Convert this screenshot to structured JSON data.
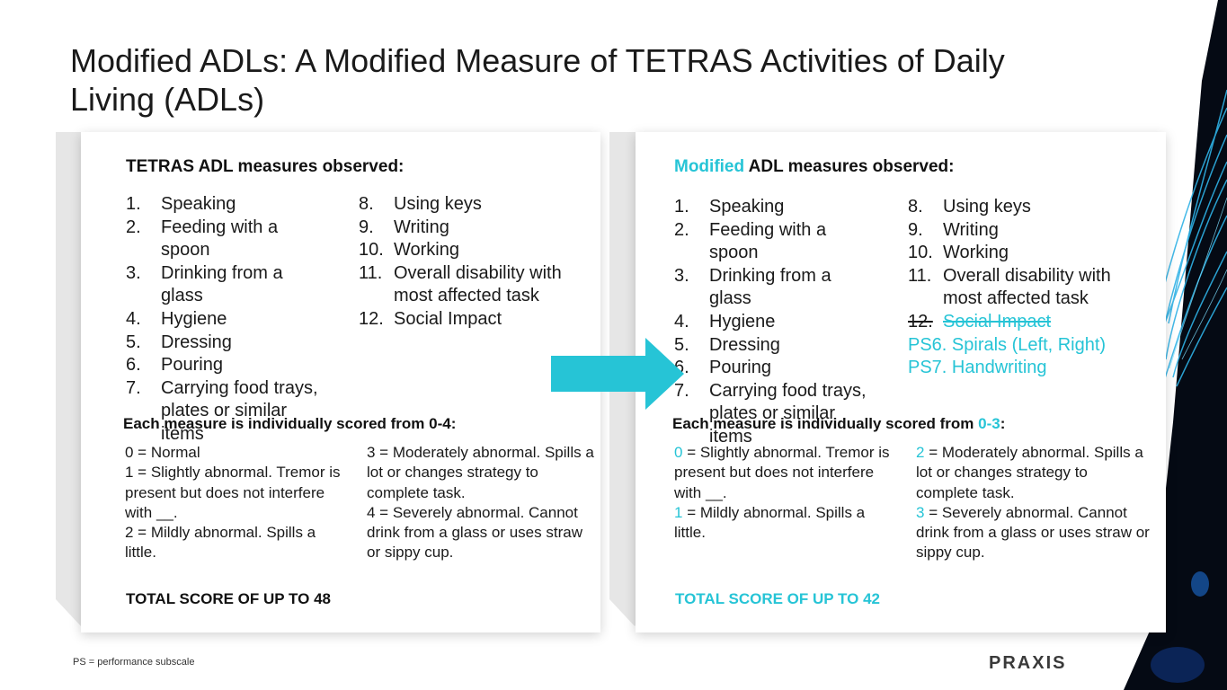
{
  "title": "Modified ADLs: A Modified Measure of TETRAS Activities of Daily Living (ADLs)",
  "left_card": {
    "heading": "TETRAS ADL measures observed:",
    "col1": [
      {
        "num": "1.",
        "text": "Speaking"
      },
      {
        "num": "2.",
        "text": "Feeding with a spoon"
      },
      {
        "num": "3.",
        "text": "Drinking from a glass"
      },
      {
        "num": "4.",
        "text": "Hygiene"
      },
      {
        "num": "5.",
        "text": "Dressing"
      },
      {
        "num": "6.",
        "text": "Pouring"
      },
      {
        "num": "7.",
        "text": "Carrying food trays, plates or similar items"
      }
    ],
    "col2": [
      {
        "num": "8.",
        "text": "Using keys"
      },
      {
        "num": "9.",
        "text": "Writing"
      },
      {
        "num": "10.",
        "text": "Working"
      },
      {
        "num": "11.",
        "text": "Overall disability with most affected task"
      },
      {
        "num": "12.",
        "text": "Social Impact"
      }
    ],
    "score_heading": "Each measure is individually scored from 0-4:",
    "score_col1": [
      "0 = Normal",
      "1 = Slightly abnormal. Tremor is present but does not interfere with __.",
      "2 = Mildly abnormal. Spills a little."
    ],
    "score_col2": [
      "3 = Moderately abnormal. Spills a lot or changes strategy to complete task.",
      "4 = Severely abnormal. Cannot drink from a glass or uses straw or sippy cup."
    ],
    "total": "TOTAL SCORE OF UP TO 48"
  },
  "right_card": {
    "heading_accent": "Modified",
    "heading_rest": " ADL measures observed:",
    "col1": [
      {
        "num": "1.",
        "text": "Speaking"
      },
      {
        "num": "2.",
        "text": "Feeding with a spoon"
      },
      {
        "num": "3.",
        "text": "Drinking from a glass"
      },
      {
        "num": "4.",
        "text": "Hygiene"
      },
      {
        "num": "5.",
        "text": "Dressing"
      },
      {
        "num": "6.",
        "text": "Pouring"
      },
      {
        "num": "7.",
        "text": "Carrying food trays, plates or similar items"
      }
    ],
    "col2": [
      {
        "num": "8.",
        "text": "Using keys"
      },
      {
        "num": "9.",
        "text": "Writing"
      },
      {
        "num": "10.",
        "text": "Working"
      },
      {
        "num": "11.",
        "text": "Overall disability with most affected task"
      }
    ],
    "struck": {
      "num": "12.",
      "text": "Social Impact"
    },
    "added": [
      "PS6. Spirals (Left, Right)",
      "PS7. Handwriting"
    ],
    "score_heading_pre": "Each measure is individually scored from ",
    "score_heading_range": "0-3",
    "score_heading_post": ":",
    "score_col1": [
      {
        "n": "0",
        "t": " = Slightly abnormal. Tremor is present but does not interfere with __."
      },
      {
        "n": "1",
        "t": " = Mildly abnormal. Spills a little."
      }
    ],
    "score_col2": [
      {
        "n": "2",
        "t": " = Moderately abnormal. Spills a lot or changes strategy to complete task."
      },
      {
        "n": "3",
        "t": " = Severely abnormal. Cannot drink from a glass or uses straw or sippy cup."
      }
    ],
    "total": "TOTAL SCORE OF UP TO 42"
  },
  "footnote": "PS = performance subscale",
  "logo": "PRAXIS",
  "colors": {
    "accent": "#26c4d6",
    "bar": "#e6e6e6",
    "text": "#1a1a1a"
  },
  "icons": {
    "arrow": "right-arrow-icon",
    "logo_mark": "praxis-x-icon"
  }
}
